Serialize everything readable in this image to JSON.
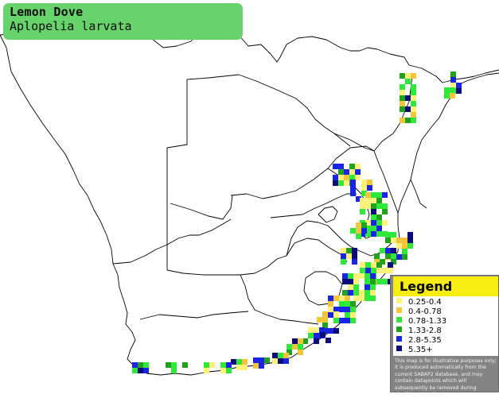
{
  "title": {
    "common_name": "Lemon Dove",
    "scientific_name": "Aplopelia larvata"
  },
  "legend": {
    "heading": "Legend",
    "items": [
      {
        "label": "0.25-0.4",
        "color": "#fff27a"
      },
      {
        "label": "0.4-0.78",
        "color": "#f3c53a"
      },
      {
        "label": "0.78-1.33",
        "color": "#2ee83a"
      },
      {
        "label": "1.33-2.8",
        "color": "#1fa31f"
      },
      {
        "label": "2.8-5.35",
        "color": "#1a24e6"
      },
      {
        "label": "5.35+",
        "color": "#0a0a7a"
      }
    ],
    "note": "This map is for illustrative purposes only; it is produced automatically from the current SABAP2 database, and may contain datapoints which will subsequently be removed during checking operations."
  },
  "colors": {
    "title_bg": "#66d36b",
    "legend_header": "#f7ed13",
    "legend_panel": "#848484",
    "border_lines": "#000000"
  }
}
